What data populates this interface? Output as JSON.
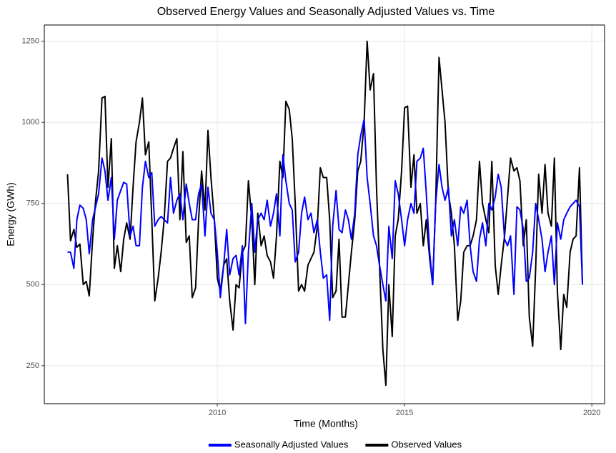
{
  "chart_data": {
    "type": "line",
    "title": "Observed Energy Values and Seasonally Adjusted Values vs. Time",
    "x_label": "Time (Months)",
    "y_label": "Energy (GWh)",
    "xlim": [
      2005.38,
      2020.34
    ],
    "ylim": [
      133,
      1300
    ],
    "xticks": [
      2010,
      2015,
      2020
    ],
    "yticks": [
      250,
      500,
      750,
      1000,
      1250
    ],
    "grid": true,
    "legend": "bottom",
    "x": [
      2006,
      2006.08,
      2006.17,
      2006.25,
      2006.33,
      2006.42,
      2006.5,
      2006.58,
      2006.67,
      2006.75,
      2006.83,
      2006.92,
      2007,
      2007.08,
      2007.17,
      2007.25,
      2007.33,
      2007.42,
      2007.5,
      2007.58,
      2007.67,
      2007.75,
      2007.83,
      2007.92,
      2008,
      2008.08,
      2008.17,
      2008.25,
      2008.33,
      2008.42,
      2008.5,
      2008.58,
      2008.67,
      2008.75,
      2008.83,
      2008.92,
      2009,
      2009.08,
      2009.17,
      2009.25,
      2009.33,
      2009.42,
      2009.5,
      2009.58,
      2009.67,
      2009.75,
      2009.83,
      2009.92,
      2010,
      2010.08,
      2010.17,
      2010.25,
      2010.33,
      2010.42,
      2010.5,
      2010.58,
      2010.67,
      2010.75,
      2010.83,
      2010.92,
      2011,
      2011.08,
      2011.17,
      2011.25,
      2011.33,
      2011.42,
      2011.5,
      2011.58,
      2011.67,
      2011.75,
      2011.83,
      2011.92,
      2012,
      2012.08,
      2012.17,
      2012.25,
      2012.33,
      2012.42,
      2012.5,
      2012.58,
      2012.67,
      2012.75,
      2012.83,
      2012.92,
      2013,
      2013.08,
      2013.17,
      2013.25,
      2013.33,
      2013.42,
      2013.5,
      2013.58,
      2013.67,
      2013.75,
      2013.83,
      2013.92,
      2014,
      2014.08,
      2014.17,
      2014.25,
      2014.33,
      2014.42,
      2014.5,
      2014.58,
      2014.67,
      2014.75,
      2014.83,
      2014.92,
      2015,
      2015.08,
      2015.17,
      2015.25,
      2015.33,
      2015.42,
      2015.5,
      2015.58,
      2015.67,
      2015.75,
      2015.83,
      2015.92,
      2016,
      2016.08,
      2016.17,
      2016.25,
      2016.33,
      2016.42,
      2016.5,
      2016.58,
      2016.67,
      2016.75,
      2016.83,
      2016.92,
      2017,
      2017.08,
      2017.17,
      2017.25,
      2017.33,
      2017.42,
      2017.5,
      2017.58,
      2017.67,
      2017.75,
      2017.83,
      2017.92,
      2018,
      2018.08,
      2018.17,
      2018.25,
      2018.33,
      2018.42,
      2018.5,
      2018.58,
      2018.67,
      2018.75,
      2018.83,
      2018.92,
      2019,
      2019.08,
      2019.17,
      2019.25,
      2019.33,
      2019.42,
      2019.5,
      2019.58,
      2019.67,
      2019.75
    ],
    "series": [
      {
        "name": "Seasonally Adjusted Values",
        "color": "#0000ff",
        "values": [
          600,
          600,
          550,
          700,
          745,
          735,
          700,
          595,
          700,
          740,
          780,
          890,
          850,
          760,
          830,
          640,
          760,
          790,
          815,
          810,
          650,
          680,
          620,
          620,
          800,
          880,
          830,
          845,
          680,
          700,
          710,
          700,
          690,
          830,
          720,
          760,
          780,
          700,
          810,
          750,
          700,
          700,
          780,
          810,
          650,
          800,
          720,
          700,
          600,
          460,
          560,
          670,
          530,
          580,
          590,
          530,
          620,
          380,
          600,
          750,
          600,
          700,
          720,
          700,
          760,
          680,
          720,
          780,
          650,
          900,
          820,
          750,
          730,
          570,
          600,
          720,
          770,
          700,
          720,
          660,
          700,
          600,
          520,
          530,
          390,
          680,
          790,
          670,
          660,
          730,
          700,
          640,
          720,
          900,
          960,
          1010,
          830,
          750,
          650,
          620,
          560,
          500,
          450,
          680,
          580,
          820,
          780,
          700,
          620,
          700,
          750,
          720,
          880,
          890,
          920,
          780,
          600,
          500,
          750,
          870,
          800,
          760,
          800,
          650,
          700,
          620,
          740,
          720,
          760,
          620,
          540,
          510,
          640,
          690,
          620,
          750,
          730,
          770,
          840,
          800,
          640,
          620,
          650,
          470,
          740,
          730,
          670,
          510,
          520,
          600,
          750,
          700,
          640,
          540,
          600,
          650,
          500,
          690,
          640,
          700,
          720,
          740,
          750,
          760,
          740,
          500
        ]
      },
      {
        "name": "Observed Values",
        "color": "#000000",
        "values": [
          840,
          635,
          670,
          615,
          625,
          500,
          510,
          465,
          640,
          760,
          850,
          1075,
          1080,
          800,
          950,
          550,
          620,
          540,
          640,
          690,
          640,
          800,
          940,
          1000,
          1075,
          900,
          940,
          700,
          450,
          520,
          600,
          700,
          880,
          890,
          920,
          950,
          700,
          910,
          630,
          650,
          460,
          490,
          700,
          850,
          730,
          975,
          830,
          700,
          520,
          480,
          560,
          580,
          450,
          360,
          500,
          490,
          600,
          620,
          820,
          700,
          500,
          720,
          620,
          650,
          590,
          570,
          520,
          650,
          880,
          830,
          1065,
          1040,
          950,
          750,
          480,
          500,
          480,
          560,
          580,
          600,
          680,
          860,
          830,
          830,
          700,
          460,
          480,
          640,
          400,
          400,
          500,
          600,
          700,
          850,
          880,
          1000,
          1250,
          1100,
          1150,
          800,
          560,
          300,
          190,
          500,
          340,
          650,
          700,
          850,
          1045,
          1050,
          800,
          900,
          720,
          750,
          620,
          700,
          580,
          500,
          750,
          1200,
          1100,
          1000,
          780,
          720,
          620,
          390,
          450,
          600,
          620,
          620,
          650,
          700,
          880,
          750,
          700,
          660,
          880,
          560,
          470,
          560,
          650,
          770,
          890,
          850,
          860,
          820,
          620,
          700,
          400,
          310,
          550,
          840,
          720,
          870,
          720,
          680,
          890,
          480,
          300,
          470,
          430,
          600,
          640,
          650,
          860,
          500
        ]
      }
    ]
  }
}
